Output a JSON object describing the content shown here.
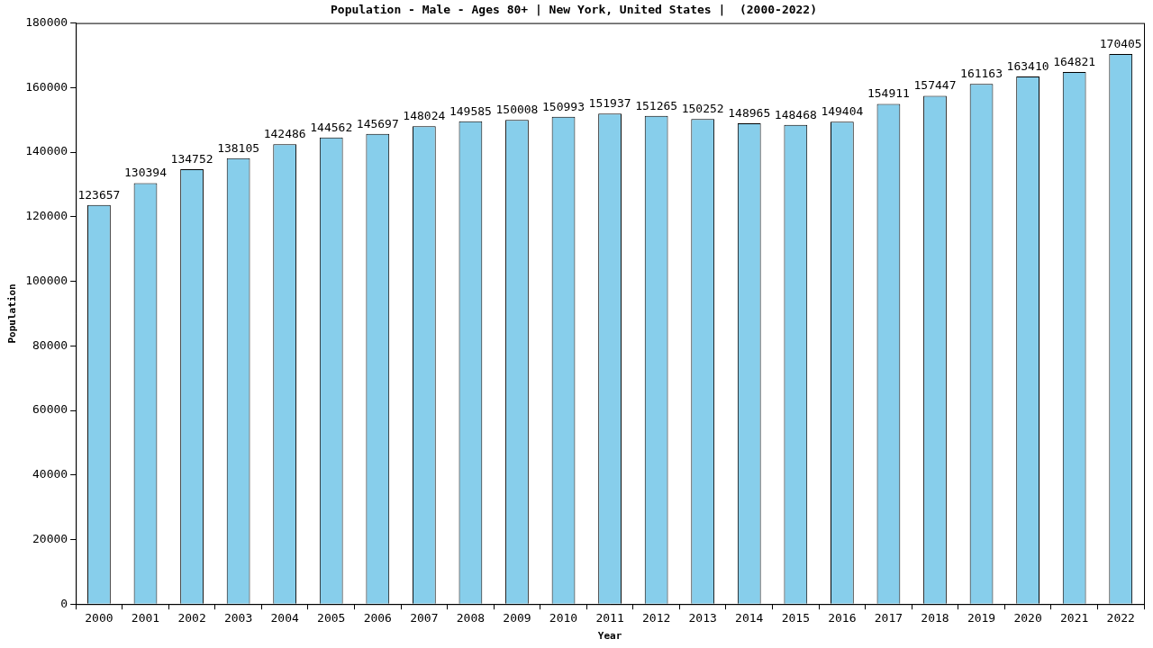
{
  "chart_data": {
    "type": "bar",
    "title": "Population - Male - Ages 80+ | New York, United States |  (2000-2022)",
    "x_label": "Year",
    "y_label": "Population",
    "categories": [
      "2000",
      "2001",
      "2002",
      "2003",
      "2004",
      "2005",
      "2006",
      "2007",
      "2008",
      "2009",
      "2010",
      "2011",
      "2012",
      "2013",
      "2014",
      "2015",
      "2016",
      "2017",
      "2018",
      "2019",
      "2020",
      "2021",
      "2022"
    ],
    "values": [
      123657,
      130394,
      134752,
      138105,
      142486,
      144562,
      145697,
      148024,
      149585,
      150008,
      150993,
      151937,
      151265,
      150252,
      148965,
      148468,
      149404,
      154911,
      157447,
      161163,
      163410,
      164821,
      170405
    ],
    "color": "#87ceeb",
    "ylim": [
      0,
      180000
    ],
    "yticks": [
      0,
      20000,
      40000,
      60000,
      80000,
      100000,
      120000,
      140000,
      160000,
      180000
    ],
    "grid": false,
    "data_labels": true
  }
}
